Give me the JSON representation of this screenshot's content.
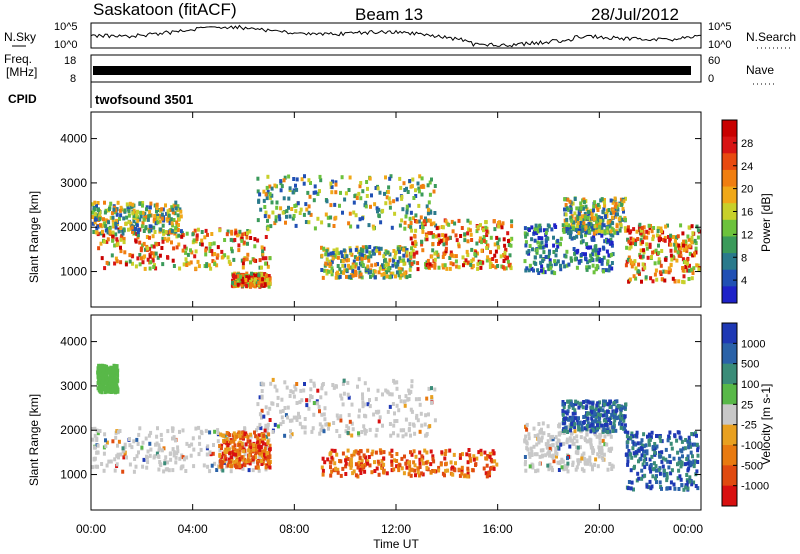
{
  "header": {
    "title": "Saskatoon (fitACF)",
    "beam": "Beam 13",
    "date": "28/Jul/2012"
  },
  "nsky_panel": {
    "left_label": "N.Sky",
    "right_label": "N.Search",
    "left_ticks": [
      "10^5",
      "10^0"
    ],
    "right_ticks": [
      "10^5",
      "10^0"
    ]
  },
  "freq_panel": {
    "left_label_line1": "Freq.",
    "left_label_line2": "[MHz]",
    "right_label": "Nave",
    "left_ticks": [
      "18",
      "8"
    ],
    "right_ticks": [
      "60",
      "0"
    ]
  },
  "cpid": {
    "label": "CPID",
    "value": "twofsound 3501"
  },
  "x_axis": {
    "label": "Time UT",
    "ticks": [
      "00:00",
      "04:00",
      "08:00",
      "12:00",
      "16:00",
      "20:00",
      "00:00"
    ]
  },
  "colors": {
    "background": "#ffffff",
    "gray_band": "#c8c8c8"
  },
  "chart_data": [
    {
      "type": "heatmap",
      "panel": "power",
      "ylabel": "Slant Range [km]",
      "ylim": [
        200,
        4600
      ],
      "yticks": [
        1000,
        2000,
        3000,
        4000
      ],
      "xlim_hours": [
        0,
        24
      ],
      "colorbar": {
        "label": "Power [dB]",
        "ticks": [
          "4",
          "8",
          "12",
          "16",
          "20",
          "24",
          "28"
        ],
        "colors": [
          "#1e22c8",
          "#2050b4",
          "#2a7a8c",
          "#3a9a5a",
          "#6cc23c",
          "#c8d02a",
          "#f0a818",
          "#f07e10",
          "#e84a10",
          "#d81414",
          "#c80000"
        ]
      },
      "echo_regions": [
        {
          "t": [
            0.2,
            7.0
          ],
          "r": [
            1100,
            2000
          ],
          "level": "high"
        },
        {
          "t": [
            0.0,
            3.5
          ],
          "r": [
            1900,
            2600
          ],
          "level": "medium"
        },
        {
          "t": [
            5.5,
            7.0
          ],
          "r": [
            700,
            1000
          ],
          "level": "high"
        },
        {
          "t": [
            6.5,
            13.5
          ],
          "r": [
            2000,
            3200
          ],
          "level": "medium"
        },
        {
          "t": [
            9.0,
            12.5
          ],
          "r": [
            900,
            1600
          ],
          "level": "medium"
        },
        {
          "t": [
            12.5,
            16.5
          ],
          "r": [
            1100,
            2200
          ],
          "level": "high"
        },
        {
          "t": [
            17.0,
            20.5
          ],
          "r": [
            1000,
            2100
          ],
          "level": "low"
        },
        {
          "t": [
            18.5,
            21.0
          ],
          "r": [
            1900,
            2700
          ],
          "level": "medium"
        },
        {
          "t": [
            21.0,
            24.0
          ],
          "r": [
            800,
            2100
          ],
          "level": "high"
        }
      ]
    },
    {
      "type": "heatmap",
      "panel": "velocity",
      "ylabel": "Slant Range [km]",
      "ylim": [
        200,
        4600
      ],
      "yticks": [
        1000,
        2000,
        3000,
        4000
      ],
      "xlim_hours": [
        0,
        24
      ],
      "colorbar": {
        "label": "Velocity [m s-1]",
        "ticks": [
          "1000",
          "500",
          "100",
          "25",
          "-25",
          "-100",
          "-500",
          "-1000"
        ],
        "colors": [
          "#1e38b4",
          "#2a62a8",
          "#3a8c78",
          "#58b848",
          "#c8c8c8",
          "#e8a020",
          "#e87a10",
          "#e04a10",
          "#d81010"
        ]
      },
      "echo_regions": [
        {
          "t": [
            0.0,
            7.0
          ],
          "r": [
            1100,
            2100
          ],
          "level": "gray"
        },
        {
          "t": [
            6.5,
            13.5
          ],
          "r": [
            1900,
            3200
          ],
          "level": "gray"
        },
        {
          "t": [
            5.0,
            7.0
          ],
          "r": [
            1200,
            2000
          ],
          "level": "negative"
        },
        {
          "t": [
            9.0,
            16.0
          ],
          "r": [
            1000,
            1600
          ],
          "level": "negative"
        },
        {
          "t": [
            17.0,
            20.5
          ],
          "r": [
            1100,
            2200
          ],
          "level": "gray"
        },
        {
          "t": [
            18.5,
            21.0
          ],
          "r": [
            2000,
            2700
          ],
          "level": "positive"
        },
        {
          "t": [
            21.0,
            24.0
          ],
          "r": [
            700,
            2000
          ],
          "level": "positive"
        },
        {
          "t": [
            0.2,
            1.0
          ],
          "r": [
            2900,
            3500
          ],
          "level": "green"
        }
      ]
    }
  ]
}
